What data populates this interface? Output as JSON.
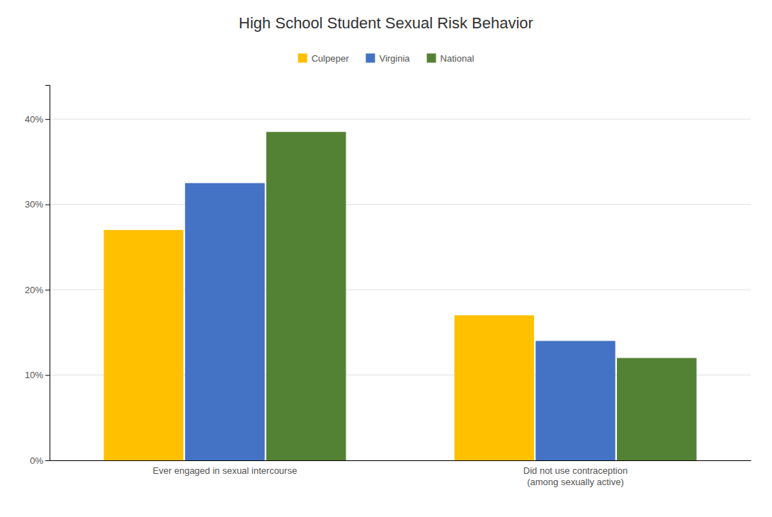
{
  "chart_data": {
    "type": "bar",
    "title": "High School Student Sexual Risk Behavior",
    "categories": [
      "Ever engaged in sexual intercourse",
      "Did not use contraception\n(among sexually active)"
    ],
    "series": [
      {
        "name": "Culpeper",
        "color": "#FFC000",
        "values": [
          0.27,
          0.17
        ]
      },
      {
        "name": "Virginia",
        "color": "#4472C4",
        "values": [
          0.325,
          0.14
        ]
      },
      {
        "name": "National",
        "color": "#548235",
        "values": [
          0.385,
          0.12
        ]
      }
    ],
    "ylim": [
      0,
      0.44
    ],
    "yticks": [
      {
        "value": 0.0,
        "label": "0%"
      },
      {
        "value": 0.1,
        "label": "10%"
      },
      {
        "value": 0.2,
        "label": "20%"
      },
      {
        "value": 0.3,
        "label": "30%"
      },
      {
        "value": 0.4,
        "label": "40%"
      }
    ],
    "grid": true,
    "legend": "top"
  }
}
